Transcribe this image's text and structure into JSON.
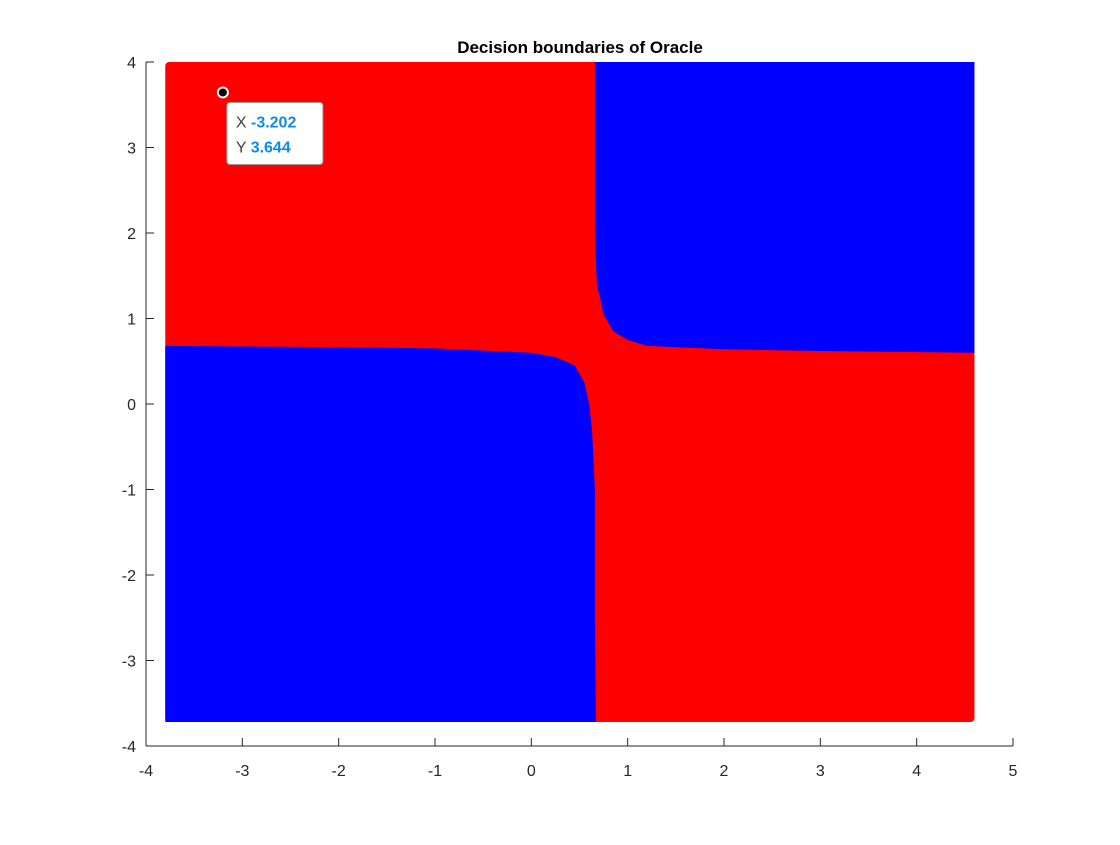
{
  "chart_data": {
    "type": "scatter",
    "title": "Decision boundaries of Oracle",
    "xlabel": "",
    "ylabel": "",
    "xlim": [
      -4,
      5
    ],
    "ylim": [
      -4,
      4
    ],
    "xticks": [
      -4,
      -3,
      -2,
      -1,
      0,
      1,
      2,
      3,
      4,
      5
    ],
    "yticks": [
      -4,
      -3,
      -2,
      -1,
      0,
      1,
      2,
      3,
      4
    ],
    "grid": false,
    "legend": "none",
    "data_extent": {
      "x": [
        -3.8,
        4.6
      ],
      "y": [
        -3.72,
        4.0
      ]
    },
    "regions": [
      {
        "class": "red",
        "color": "#ff0000",
        "description_of_extent": "x < ~0.65 with y > ~0.6, and x > ~0.65 with y < ~0.6"
      },
      {
        "class": "blue",
        "color": "#0000ff",
        "description_of_extent": "x < ~0.65 with y < ~0.6, and x > ~0.65 with y > ~0.6"
      }
    ],
    "boundary_vertical": [
      [
        0.67,
        -3.72
      ],
      [
        0.66,
        -2.5
      ],
      [
        0.66,
        -1.0
      ],
      [
        0.63,
        -0.3
      ],
      [
        0.6,
        0.0
      ],
      [
        0.55,
        0.25
      ],
      [
        0.45,
        0.45
      ],
      [
        0.25,
        0.55
      ],
      [
        0.0,
        0.6
      ],
      [
        -1.0,
        0.65
      ],
      [
        -2.5,
        0.67
      ],
      [
        -3.8,
        0.68
      ]
    ],
    "boundary_horizontal": [
      [
        4.6,
        0.6
      ],
      [
        3.0,
        0.62
      ],
      [
        2.0,
        0.64
      ],
      [
        1.2,
        0.68
      ],
      [
        1.0,
        0.75
      ],
      [
        0.85,
        0.85
      ],
      [
        0.75,
        1.05
      ],
      [
        0.68,
        1.4
      ],
      [
        0.66,
        2.0
      ],
      [
        0.66,
        4.0
      ]
    ],
    "datatip": {
      "x": -3.202,
      "y": 3.644,
      "x_label": "X",
      "y_label": "Y",
      "x_text": "-3.202",
      "y_text": "3.644"
    }
  },
  "colors": {
    "class_red": "#ff0000",
    "class_blue": "#0000ff",
    "axis": "#262626",
    "datatip_value": "#0b8be6"
  }
}
